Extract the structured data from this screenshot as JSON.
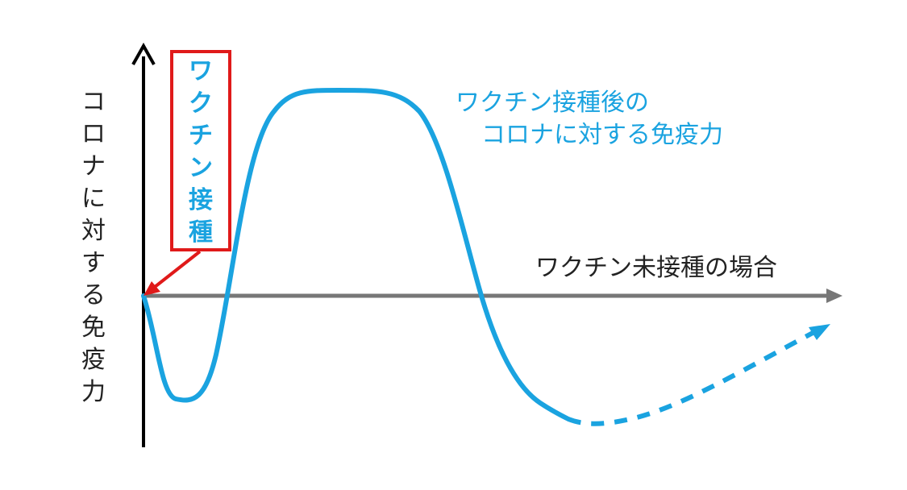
{
  "y_axis_label": [
    "コ",
    "ロ",
    "ナ",
    "に",
    "対",
    "す",
    "る",
    "免",
    "疫",
    "力"
  ],
  "vaccination_box": [
    "ワ",
    "ク",
    "チ",
    "ン",
    "接",
    "種"
  ],
  "curve_label": {
    "line1": "ワクチン接種後の",
    "line2": "コロナに対する免疫力"
  },
  "baseline_label": "ワクチン未接種の場合",
  "colors": {
    "curve": "#1aa3e0",
    "box_border": "#e01a1a",
    "y_axis": "#000000",
    "x_axis": "#777777",
    "text": "#222222"
  }
}
